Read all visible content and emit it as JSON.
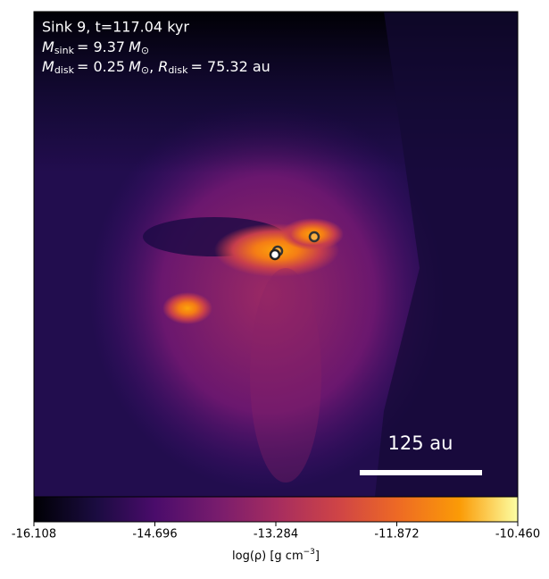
{
  "chart_data": {
    "type": "density-map",
    "annotations": {
      "line1": "Sink 9, t=117.04 kyr",
      "line2": {
        "symbol": "M",
        "subscript": "sink",
        "rest": "= 9.37",
        "unit": "M",
        "unit_subscript": "⊙"
      },
      "line3": {
        "symbol": "M",
        "subscript": "disk",
        "rest": "= 0.25",
        "unit": "M",
        "unit_subscript": "⊙",
        "sep": ",",
        "symbol2": "R",
        "subscript2": "disk",
        "rest2": "= 75.32 au"
      }
    },
    "scale_bar": "125 au",
    "colorbar": {
      "label": {
        "text": "log(ρ) [g cm",
        "superscript": "−3",
        "suffix": "]"
      },
      "clim": [
        -16.108,
        -10.46
      ],
      "ticks": [
        {
          "value": -16.108,
          "label": "-16.108"
        },
        {
          "value": -14.696,
          "label": "-14.696"
        },
        {
          "value": -13.284,
          "label": "-13.284"
        },
        {
          "value": -11.872,
          "label": "-11.872"
        },
        {
          "value": -10.46,
          "label": "-10.460"
        }
      ]
    }
  }
}
